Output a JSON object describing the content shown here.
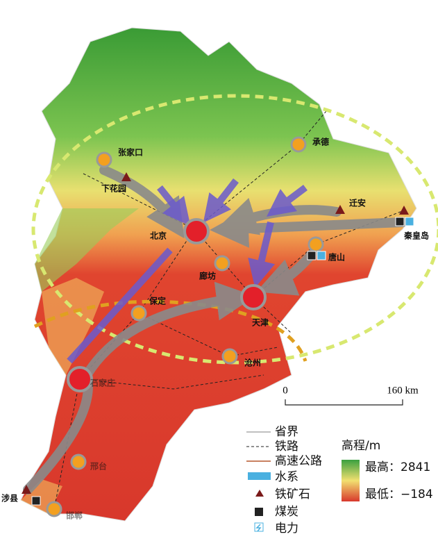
{
  "cities": [
    "张家口",
    "承德",
    "下花园",
    "北京",
    "迁安",
    "秦皇岛",
    "唐山",
    "廊坊",
    "保定",
    "天津",
    "沧州",
    "石家庄",
    "邢台",
    "涉县",
    "邯郸"
  ],
  "scale": {
    "start": "0",
    "end": "160 km"
  },
  "legend": {
    "items": [
      "省界",
      "铁路",
      "高速公路",
      "水系",
      "铁矿石",
      "煤炭",
      "电力"
    ],
    "elevation": {
      "title": "高程/m",
      "max": "最高：2841",
      "min": "最低：−184"
    }
  }
}
